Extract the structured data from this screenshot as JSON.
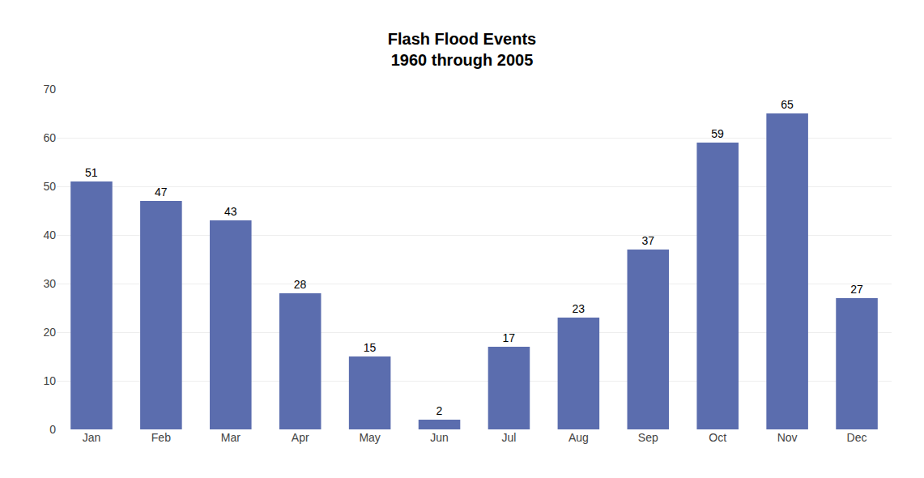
{
  "chart_data": {
    "type": "bar",
    "title": "Flash Flood Events",
    "subtitle": "1960 through 2005",
    "categories": [
      "Jan",
      "Feb",
      "Mar",
      "Apr",
      "May",
      "Jun",
      "Jul",
      "Aug",
      "Sep",
      "Oct",
      "Nov",
      "Dec"
    ],
    "values": [
      51,
      47,
      43,
      28,
      15,
      2,
      17,
      23,
      37,
      59,
      65,
      27
    ],
    "color": "#5B6DAE",
    "ylim": [
      0,
      70
    ],
    "yticks": [
      0,
      10,
      20,
      30,
      40,
      50,
      60,
      70
    ],
    "grid": true,
    "data_labels": true
  }
}
